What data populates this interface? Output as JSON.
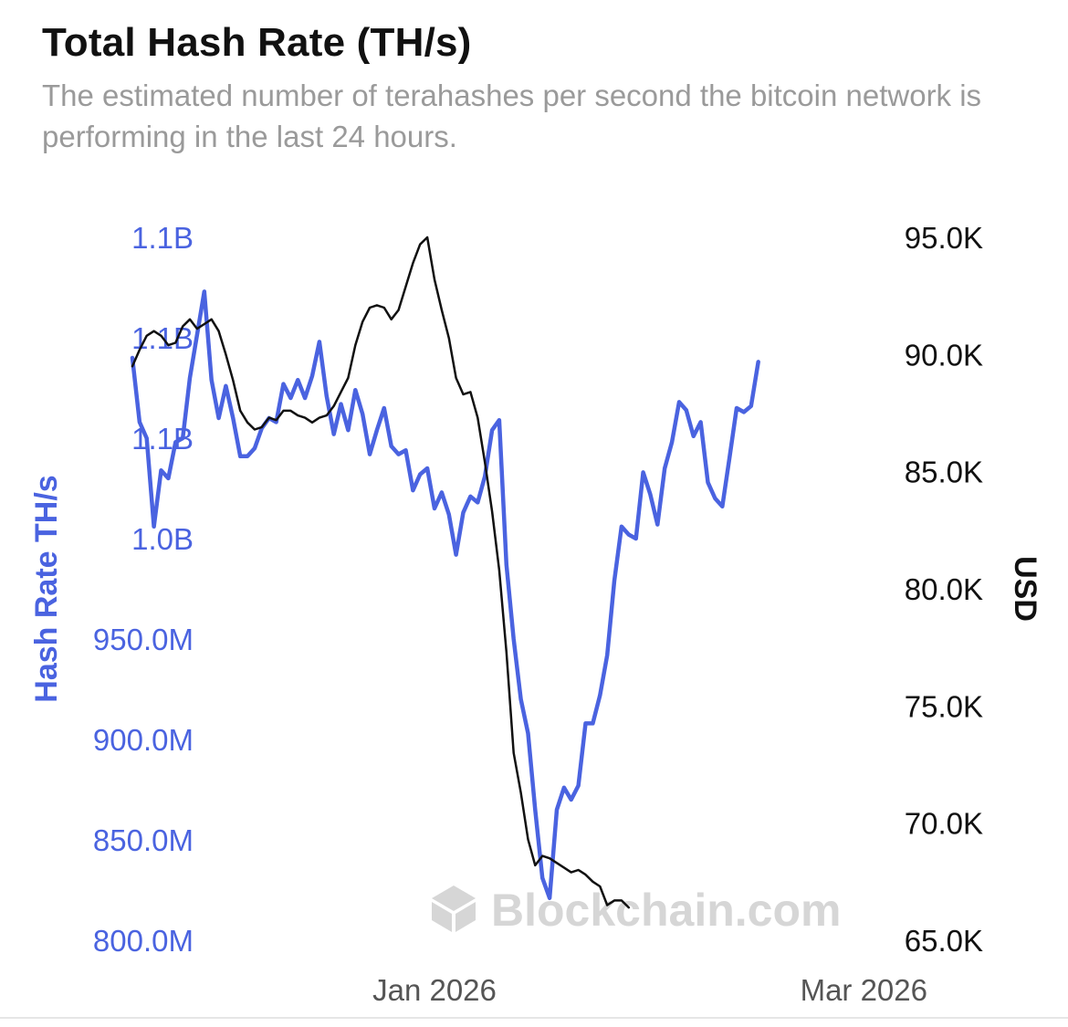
{
  "header": {
    "title": "Total Hash Rate (TH/s)",
    "subtitle": "The estimated number of terahashes per second the bitcoin network is performing in the last 24 hours."
  },
  "watermark": {
    "text": "Blockchain.com",
    "icon": "blockchain-cube-icon"
  },
  "colors": {
    "hash_rate": "#4a63e0",
    "usd": "#111111",
    "tick_text_right": "#111111",
    "x_tick_text": "#555555",
    "watermark": "#d6d6d6"
  },
  "chart_data": {
    "type": "line",
    "grid": false,
    "legend": "none",
    "x_ticks": [
      {
        "label": "Jan 2026",
        "date": "2026-01-01"
      },
      {
        "label": "Mar 2026",
        "date": "2026-03-01"
      }
    ],
    "x_range": [
      "2025-11-20",
      "2026-03-02"
    ],
    "y_left": {
      "label": "Hash Rate TH/s",
      "range": [
        800000000,
        1150000000
      ],
      "ticks": [
        {
          "value": 1150000000,
          "label": "1.1B"
        },
        {
          "value": 1100000000,
          "label": "1.1B"
        },
        {
          "value": 1050000000,
          "label": "1.1B"
        },
        {
          "value": 1000000000,
          "label": "1.0B"
        },
        {
          "value": 950000000,
          "label": "950.0M"
        },
        {
          "value": 900000000,
          "label": "900.0M"
        },
        {
          "value": 850000000,
          "label": "850.0M"
        },
        {
          "value": 800000000,
          "label": "800.0M"
        }
      ]
    },
    "y_right": {
      "label": "USD",
      "range": [
        65000,
        95000
      ],
      "ticks": [
        {
          "value": 95000,
          "label": "95.0K"
        },
        {
          "value": 90000,
          "label": "90.0K"
        },
        {
          "value": 85000,
          "label": "85.0K"
        },
        {
          "value": 80000,
          "label": "80.0K"
        },
        {
          "value": 75000,
          "label": "75.0K"
        },
        {
          "value": 70000,
          "label": "70.0K"
        },
        {
          "value": 65000,
          "label": "65.0K"
        }
      ]
    },
    "series": [
      {
        "axis": "left",
        "color": "#4a63e0",
        "points": [
          [
            "2025-11-20",
            1090000000
          ],
          [
            "2025-11-21",
            1058000000
          ],
          [
            "2025-11-22",
            1050000000
          ],
          [
            "2025-11-23",
            1006000000
          ],
          [
            "2025-11-24",
            1034000000
          ],
          [
            "2025-11-25",
            1030000000
          ],
          [
            "2025-11-26",
            1048000000
          ],
          [
            "2025-11-27",
            1050000000
          ],
          [
            "2025-11-28",
            1080000000
          ],
          [
            "2025-11-30",
            1123000000
          ],
          [
            "2025-12-01",
            1079000000
          ],
          [
            "2025-12-02",
            1060000000
          ],
          [
            "2025-12-03",
            1076000000
          ],
          [
            "2025-12-04",
            1060000000
          ],
          [
            "2025-12-05",
            1041000000
          ],
          [
            "2025-12-06",
            1041000000
          ],
          [
            "2025-12-07",
            1045000000
          ],
          [
            "2025-12-08",
            1055000000
          ],
          [
            "2025-12-09",
            1060000000
          ],
          [
            "2025-12-10",
            1058000000
          ],
          [
            "2025-12-11",
            1077000000
          ],
          [
            "2025-12-12",
            1070000000
          ],
          [
            "2025-12-13",
            1079000000
          ],
          [
            "2025-12-14",
            1070000000
          ],
          [
            "2025-12-15",
            1081000000
          ],
          [
            "2025-12-16",
            1098000000
          ],
          [
            "2025-12-17",
            1071000000
          ],
          [
            "2025-12-18",
            1052000000
          ],
          [
            "2025-12-19",
            1067000000
          ],
          [
            "2025-12-20",
            1054000000
          ],
          [
            "2025-12-21",
            1074000000
          ],
          [
            "2025-12-22",
            1062000000
          ],
          [
            "2025-12-23",
            1042000000
          ],
          [
            "2025-12-24",
            1054000000
          ],
          [
            "2025-12-25",
            1065000000
          ],
          [
            "2025-12-26",
            1046000000
          ],
          [
            "2025-12-27",
            1042000000
          ],
          [
            "2025-12-28",
            1044000000
          ],
          [
            "2025-12-29",
            1024000000
          ],
          [
            "2025-12-30",
            1032000000
          ],
          [
            "2025-12-31",
            1035000000
          ],
          [
            "2026-01-01",
            1015000000
          ],
          [
            "2026-01-02",
            1023000000
          ],
          [
            "2026-01-03",
            1012000000
          ],
          [
            "2026-01-04",
            992000000
          ],
          [
            "2026-01-05",
            1013000000
          ],
          [
            "2026-01-06",
            1021000000
          ],
          [
            "2026-01-07",
            1018000000
          ],
          [
            "2026-01-08",
            1031000000
          ],
          [
            "2026-01-09",
            1054000000
          ],
          [
            "2026-01-10",
            1059000000
          ],
          [
            "2026-01-11",
            987000000
          ],
          [
            "2026-01-12",
            950000000
          ],
          [
            "2026-01-13",
            920000000
          ],
          [
            "2026-01-14",
            903000000
          ],
          [
            "2026-01-15",
            865000000
          ],
          [
            "2026-01-16",
            831000000
          ],
          [
            "2026-01-17",
            821000000
          ],
          [
            "2026-01-18",
            865000000
          ],
          [
            "2026-01-19",
            876000000
          ],
          [
            "2026-01-20",
            870000000
          ],
          [
            "2026-01-21",
            877000000
          ],
          [
            "2026-01-22",
            908000000
          ],
          [
            "2026-01-23",
            908000000
          ],
          [
            "2026-01-24",
            922000000
          ],
          [
            "2026-01-25",
            942000000
          ],
          [
            "2026-01-26",
            979000000
          ],
          [
            "2026-01-27",
            1006000000
          ],
          [
            "2026-01-28",
            1002000000
          ],
          [
            "2026-01-29",
            1000000000
          ],
          [
            "2026-01-30",
            1033000000
          ],
          [
            "2026-01-31",
            1022000000
          ],
          [
            "2026-02-01",
            1007000000
          ],
          [
            "2026-02-02",
            1035000000
          ],
          [
            "2026-02-03",
            1048000000
          ],
          [
            "2026-02-04",
            1068000000
          ],
          [
            "2026-02-05",
            1064000000
          ],
          [
            "2026-02-06",
            1051000000
          ],
          [
            "2026-02-07",
            1058000000
          ],
          [
            "2026-02-08",
            1028000000
          ],
          [
            "2026-02-09",
            1020000000
          ],
          [
            "2026-02-10",
            1016000000
          ],
          [
            "2026-02-11",
            1040000000
          ],
          [
            "2026-02-12",
            1065000000
          ],
          [
            "2026-02-13",
            1063000000
          ],
          [
            "2026-02-14",
            1066000000
          ],
          [
            "2026-02-15",
            1088000000
          ]
        ]
      },
      {
        "axis": "right",
        "color": "#111111",
        "points": [
          [
            "2025-11-20",
            89500
          ],
          [
            "2025-11-21",
            90200
          ],
          [
            "2025-11-22",
            90800
          ],
          [
            "2025-11-23",
            91000
          ],
          [
            "2025-11-24",
            90800
          ],
          [
            "2025-11-25",
            90400
          ],
          [
            "2025-11-26",
            90500
          ],
          [
            "2025-11-27",
            91200
          ],
          [
            "2025-11-28",
            91500
          ],
          [
            "2025-11-29",
            91100
          ],
          [
            "2025-11-30",
            91300
          ],
          [
            "2025-12-01",
            91500
          ],
          [
            "2025-12-02",
            91000
          ],
          [
            "2025-12-03",
            90000
          ],
          [
            "2025-12-04",
            88900
          ],
          [
            "2025-12-05",
            87600
          ],
          [
            "2025-12-06",
            87100
          ],
          [
            "2025-12-07",
            86800
          ],
          [
            "2025-12-08",
            86900
          ],
          [
            "2025-12-09",
            87300
          ],
          [
            "2025-12-10",
            87200
          ],
          [
            "2025-12-11",
            87600
          ],
          [
            "2025-12-12",
            87600
          ],
          [
            "2025-12-13",
            87400
          ],
          [
            "2025-12-14",
            87300
          ],
          [
            "2025-12-15",
            87100
          ],
          [
            "2025-12-16",
            87300
          ],
          [
            "2025-12-17",
            87400
          ],
          [
            "2025-12-18",
            87800
          ],
          [
            "2025-12-19",
            88400
          ],
          [
            "2025-12-20",
            89000
          ],
          [
            "2025-12-21",
            90400
          ],
          [
            "2025-12-22",
            91400
          ],
          [
            "2025-12-23",
            92000
          ],
          [
            "2025-12-24",
            92100
          ],
          [
            "2025-12-25",
            92000
          ],
          [
            "2025-12-26",
            91500
          ],
          [
            "2025-12-27",
            91900
          ],
          [
            "2025-12-28",
            92900
          ],
          [
            "2025-12-29",
            93900
          ],
          [
            "2025-12-30",
            94700
          ],
          [
            "2025-12-31",
            95000
          ],
          [
            "2026-01-01",
            93200
          ],
          [
            "2026-01-02",
            91900
          ],
          [
            "2026-01-03",
            90700
          ],
          [
            "2026-01-04",
            89000
          ],
          [
            "2026-01-05",
            88300
          ],
          [
            "2026-01-06",
            88400
          ],
          [
            "2026-01-07",
            87300
          ],
          [
            "2026-01-08",
            85400
          ],
          [
            "2026-01-09",
            83300
          ],
          [
            "2026-01-10",
            80800
          ],
          [
            "2026-01-11",
            77300
          ],
          [
            "2026-01-12",
            73000
          ],
          [
            "2026-01-13",
            71300
          ],
          [
            "2026-01-14",
            69300
          ],
          [
            "2026-01-15",
            68200
          ],
          [
            "2026-01-16",
            68600
          ],
          [
            "2026-01-17",
            68500
          ],
          [
            "2026-01-18",
            68300
          ],
          [
            "2026-01-19",
            68100
          ],
          [
            "2026-01-20",
            67900
          ],
          [
            "2026-01-21",
            68000
          ],
          [
            "2026-01-22",
            67800
          ],
          [
            "2026-01-23",
            67500
          ],
          [
            "2026-01-24",
            67300
          ],
          [
            "2026-01-25",
            66500
          ],
          [
            "2026-01-26",
            66700
          ],
          [
            "2026-01-27",
            66700
          ],
          [
            "2026-01-28",
            66400
          ]
        ]
      }
    ]
  }
}
